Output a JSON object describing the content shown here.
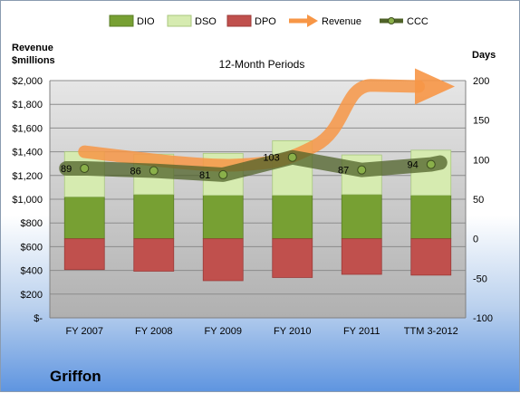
{
  "company": "Griffon",
  "chart_data": {
    "type": "bar",
    "title": "12-Month Periods",
    "left_axis_label_line1": "Revenue",
    "left_axis_label_line2": "$millions",
    "right_axis_label": "Days",
    "categories": [
      "FY 2007",
      "FY 2008",
      "FY 2009",
      "FY 2010",
      "FY 2011",
      "TTM 3-2012"
    ],
    "left_ylim": [
      0,
      2000
    ],
    "left_ticks": [
      "$-",
      "$200",
      "$400",
      "$600",
      "$800",
      "$1,000",
      "$1,200",
      "$1,400",
      "$1,600",
      "$1,800",
      "$2,000"
    ],
    "right_ylim": [
      -100,
      200
    ],
    "right_ticks": [
      "-100",
      "-50",
      "0",
      "50",
      "100",
      "150",
      "200"
    ],
    "series": [
      {
        "name": "DIO",
        "type": "stacked-bar",
        "color": "#77a033",
        "values": [
          53,
          56,
          55,
          55,
          56,
          55
        ]
      },
      {
        "name": "DSO",
        "type": "stacked-bar",
        "color": "#d6ebb0",
        "values": [
          57,
          51,
          53,
          69,
          50,
          57
        ]
      },
      {
        "name": "DPO",
        "type": "negative-bar",
        "color": "#c0504d",
        "values": [
          -39,
          -41,
          -53,
          -49,
          -45,
          -46
        ]
      },
      {
        "name": "Revenue",
        "type": "trend-arrow",
        "color": "#f79646"
      },
      {
        "name": "CCC",
        "type": "line",
        "color": "#4f6228",
        "values": [
          89,
          86,
          81,
          103,
          87,
          94
        ]
      }
    ],
    "grid": true,
    "legend_position": "top"
  }
}
